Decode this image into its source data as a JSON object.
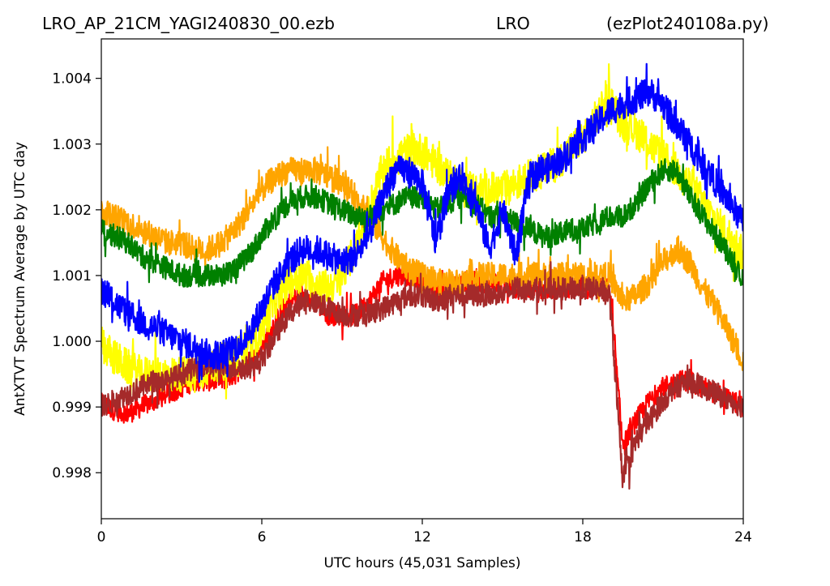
{
  "title": {
    "left": "LRO_AP_21CM_YAGI240830_00.ezb",
    "center": "LRO",
    "right": "(ezPlot240108a.py)"
  },
  "chart_data": {
    "type": "line",
    "xlabel": "UTC hours  (45,031 Samples)",
    "ylabel": "AntXTVT Spectrum Average by UTC day",
    "xlim": [
      0,
      24
    ],
    "ylim": [
      0.9973,
      1.0046
    ],
    "xticks": [
      0,
      6,
      12,
      18,
      24
    ],
    "xtick_labels": [
      "0",
      "6",
      "12",
      "18",
      "24"
    ],
    "yticks": [
      0.998,
      0.999,
      1.0,
      1.001,
      1.002,
      1.003,
      1.004
    ],
    "ytick_labels": [
      "0.998",
      "0.999",
      "1.000",
      "1.001",
      "1.002",
      "1.003",
      "1.004"
    ],
    "grid": false,
    "legend": false,
    "x": [
      0,
      0.5,
      1,
      1.5,
      2,
      2.5,
      3,
      3.5,
      4,
      4.5,
      5,
      5.5,
      6,
      6.5,
      7,
      7.5,
      8,
      8.5,
      9,
      9.5,
      10,
      10.5,
      11,
      11.5,
      12,
      12.5,
      13,
      13.5,
      14,
      14.5,
      15,
      15.5,
      16,
      16.5,
      17,
      17.5,
      18,
      18.5,
      19,
      19.5,
      20,
      20.5,
      21,
      21.5,
      22,
      22.5,
      23,
      23.5,
      24
    ],
    "series": [
      {
        "color": "#ff0000",
        "noise": 0.00032,
        "values": [
          0.99905,
          0.99895,
          0.9989,
          0.999,
          0.9991,
          0.9992,
          0.9993,
          0.9994,
          0.9994,
          0.9994,
          0.9995,
          0.9997,
          0.9999,
          1.0003,
          1.0006,
          1.0007,
          1.0006,
          1.0004,
          1.0004,
          1.0004,
          1.0006,
          1.0009,
          1.001,
          1.001,
          1.0009,
          1.0007,
          1.0008,
          1.0009,
          1.0009,
          1.0009,
          1.0009,
          1.0008,
          1.0008,
          1.0008,
          1.0008,
          1.0008,
          1.0008,
          1.0008,
          1.0008,
          0.9984,
          0.9988,
          0.9991,
          0.9993,
          0.9994,
          0.9994,
          0.9993,
          0.9992,
          0.9991,
          0.999
        ]
      },
      {
        "color": "#ffff00",
        "noise": 0.00055,
        "values": [
          0.99995,
          0.99975,
          0.9996,
          0.9995,
          0.9995,
          0.9995,
          0.9995,
          0.9995,
          0.9996,
          0.9997,
          0.9998,
          0.9999,
          1.0002,
          1.0006,
          1.0009,
          1.001,
          1.0009,
          1.0008,
          1.001,
          1.0014,
          1.002,
          1.0026,
          1.0028,
          1.0029,
          1.0029,
          1.0027,
          1.0025,
          1.0024,
          1.0023,
          1.0023,
          1.0023,
          1.0024,
          1.0025,
          1.0026,
          1.0027,
          1.0029,
          1.0031,
          1.0034,
          1.0037,
          1.0033,
          1.0032,
          1.003,
          1.0028,
          1.0026,
          1.0024,
          1.0021,
          1.0018,
          1.0016,
          1.0013
        ]
      },
      {
        "color": "#ffa500",
        "noise": 0.0004,
        "values": [
          1.002,
          1.0019,
          1.0018,
          1.0017,
          1.0016,
          1.0015,
          1.0015,
          1.0014,
          1.0014,
          1.0015,
          1.0017,
          1.002,
          1.0023,
          1.0025,
          1.0026,
          1.0026,
          1.0026,
          1.0025,
          1.0024,
          1.0022,
          1.0019,
          1.0016,
          1.0013,
          1.0011,
          1.001,
          1.0009,
          1.0009,
          1.0009,
          1.001,
          1.001,
          1.001,
          1.001,
          1.001,
          1.001,
          1.001,
          1.001,
          1.001,
          1.001,
          1.001,
          1.0006,
          1.0007,
          1.0009,
          1.0012,
          1.0014,
          1.0012,
          1.0008,
          1.0005,
          1.0001,
          0.9997
        ]
      },
      {
        "color": "#a52a2a",
        "noise": 0.00035,
        "values": [
          0.999,
          0.9991,
          0.9992,
          0.9993,
          0.9994,
          0.9994,
          0.9995,
          0.9996,
          0.9996,
          0.9996,
          0.9996,
          0.9996,
          0.9997,
          1.0001,
          1.0004,
          1.0006,
          1.0006,
          1.0005,
          1.0004,
          1.0004,
          1.0004,
          1.0005,
          1.0006,
          1.0007,
          1.0007,
          1.0006,
          1.0007,
          1.0007,
          1.0007,
          1.0007,
          1.0007,
          1.0008,
          1.0008,
          1.0008,
          1.0008,
          1.0008,
          1.0008,
          1.0008,
          1.0007,
          0.9979,
          0.9985,
          0.9988,
          0.9991,
          0.9993,
          0.9994,
          0.9993,
          0.9992,
          0.9991,
          0.999
        ]
      },
      {
        "color": "#008000",
        "noise": 0.00035,
        "values": [
          1.0017,
          1.0016,
          1.0015,
          1.0013,
          1.0012,
          1.0011,
          1.001,
          1.001,
          1.001,
          1.001,
          1.0011,
          1.0013,
          1.0016,
          1.0019,
          1.0021,
          1.0022,
          1.0022,
          1.0021,
          1.002,
          1.0019,
          1.0019,
          1.002,
          1.0021,
          1.0022,
          1.0022,
          1.002,
          1.0021,
          1.0022,
          1.0021,
          1.0019,
          1.0019,
          1.0018,
          1.0017,
          1.0016,
          1.0016,
          1.0017,
          1.0017,
          1.0018,
          1.0019,
          1.0019,
          1.0021,
          1.0024,
          1.0026,
          1.0026,
          1.0022,
          1.0019,
          1.0016,
          1.0013,
          1.0009
        ]
      },
      {
        "color": "#0000ff",
        "noise": 0.00045,
        "values": [
          1.0008,
          1.0006,
          1.0004,
          1.0003,
          1.0002,
          1.0001,
          1.0,
          0.9999,
          0.9998,
          0.9998,
          0.9999,
          1.0001,
          1.0005,
          1.0009,
          1.0012,
          1.0014,
          1.0014,
          1.0013,
          1.0012,
          1.0013,
          1.0016,
          1.0022,
          1.0026,
          1.0026,
          1.0024,
          1.0015,
          1.0023,
          1.0025,
          1.0021,
          1.0014,
          1.002,
          1.0013,
          1.0025,
          1.0026,
          1.0027,
          1.0029,
          1.0031,
          1.0033,
          1.0035,
          1.0036,
          1.0037,
          1.0038,
          1.0036,
          1.0033,
          1.003,
          1.0027,
          1.0024,
          1.0021,
          1.0018
        ]
      }
    ]
  }
}
